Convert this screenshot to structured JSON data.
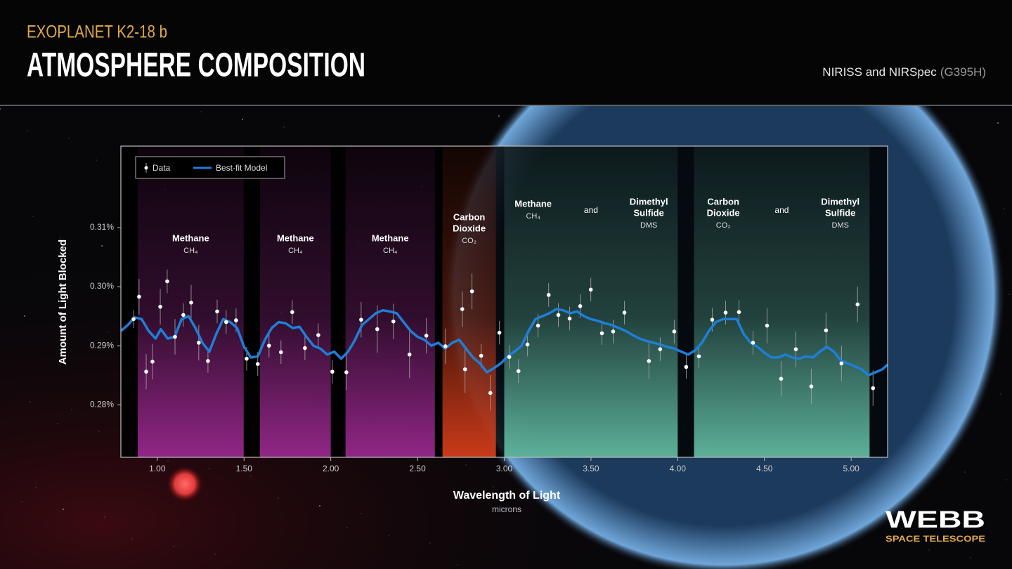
{
  "header": {
    "kicker": "EXOPLANET K2-18 b",
    "title": "ATMOSPHERE COMPOSITION",
    "instrument": "NIRISS and NIRSpec",
    "mode": "(G395H)"
  },
  "chart_data": {
    "type": "scatter-model",
    "xlabel": "Wavelength of Light",
    "xunit": "microns",
    "ylabel": "Amount of Light Blocked",
    "xlim": [
      0.79,
      5.21
    ],
    "ylim": [
      0.2711,
      0.3238
    ],
    "xticks": [
      {
        "value": 1,
        "label": "1.00"
      },
      {
        "value": 1.5,
        "label": "1.50"
      },
      {
        "value": 2,
        "label": "2.00"
      },
      {
        "value": 2.5,
        "label": "2.50"
      },
      {
        "value": 3,
        "label": "3.00"
      },
      {
        "value": 3.5,
        "label": "3.50"
      },
      {
        "value": 4,
        "label": "4.00"
      },
      {
        "value": 4.5,
        "label": "4.50"
      },
      {
        "value": 5,
        "label": "5.00"
      }
    ],
    "yticks": [
      {
        "value": 0.28,
        "label": "0.28%"
      },
      {
        "value": 0.29,
        "label": "0.29%"
      },
      {
        "value": 0.3,
        "label": "0.30%"
      },
      {
        "value": 0.31,
        "label": "0.31%"
      }
    ],
    "regions": [
      {
        "xlim": [
          0.887,
          1.498
        ],
        "color": "#a02a94",
        "groups": [
          {
            "lines": [
              "Methane"
            ],
            "formula": "CH₄"
          }
        ]
      },
      {
        "xlim": [
          1.592,
          2.0
        ],
        "color": "#a02a94",
        "groups": [
          {
            "lines": [
              "Methane"
            ],
            "formula": "CH₄"
          }
        ]
      },
      {
        "xlim": [
          2.085,
          2.6
        ],
        "color": "#a02a94",
        "groups": [
          {
            "lines": [
              "Methane"
            ],
            "formula": "CH₄"
          }
        ]
      },
      {
        "xlim": [
          2.644,
          2.952
        ],
        "color": "#e0401c",
        "groups": [
          {
            "lines": [
              "Carbon",
              "Dioxide"
            ],
            "formula": "CO₂"
          }
        ]
      },
      {
        "xlim": [
          3.0,
          4.0
        ],
        "color": "#66c2a8",
        "groups": [
          {
            "lines": [
              "Methane"
            ],
            "formula": "CH₄"
          },
          {
            "lines": [
              "and"
            ]
          },
          {
            "lines": [
              "Dimethyl",
              "Sulfide"
            ],
            "formula": "DMS"
          }
        ]
      },
      {
        "xlim": [
          4.094,
          5.106
        ],
        "color": "#66c2a8",
        "groups": [
          {
            "lines": [
              "Carbon",
              "Dioxide"
            ],
            "formula": "CO₂"
          },
          {
            "lines": [
              "and"
            ]
          },
          {
            "lines": [
              "Dimethyl",
              "Sulfide"
            ],
            "formula": "DMS"
          }
        ]
      }
    ],
    "series": [
      {
        "name": "Data",
        "color": "#ffffff",
        "x": [
          0.863,
          0.895,
          0.936,
          0.972,
          1.017,
          1.057,
          1.102,
          1.15,
          1.195,
          1.239,
          1.292,
          1.345,
          1.397,
          1.454,
          1.515,
          1.579,
          1.644,
          1.713,
          1.778,
          1.851,
          1.928,
          2.009,
          2.09,
          2.175,
          2.268,
          2.361,
          2.454,
          2.551,
          2.661,
          2.758,
          2.774,
          2.814,
          2.867,
          2.92,
          2.972,
          3.029,
          3.082,
          3.134,
          3.195,
          3.256,
          3.312,
          3.377,
          3.438,
          3.499,
          3.563,
          3.628,
          3.693,
          3.834,
          3.899,
          3.98,
          4.049,
          4.122,
          4.199,
          4.276,
          4.353,
          4.434,
          4.515,
          4.596,
          4.681,
          4.77,
          4.855,
          4.944,
          5.037,
          5.126
        ],
        "values": [
          0.2945,
          0.2983,
          0.2856,
          0.2873,
          0.2966,
          0.3009,
          0.2915,
          0.2952,
          0.2973,
          0.2905,
          0.2874,
          0.2958,
          0.294,
          0.2943,
          0.2878,
          0.2869,
          0.29,
          0.2889,
          0.2957,
          0.2896,
          0.2918,
          0.2856,
          0.2855,
          0.2944,
          0.2928,
          0.2941,
          0.2885,
          0.2917,
          0.2899,
          0.2962,
          0.286,
          0.2992,
          0.2883,
          0.282,
          0.2922,
          0.2881,
          0.2857,
          0.2902,
          0.2934,
          0.2986,
          0.2952,
          0.2946,
          0.2967,
          0.2995,
          0.2921,
          0.2924,
          0.2956,
          0.2874,
          0.2894,
          0.2924,
          0.2864,
          0.2882,
          0.2944,
          0.2956,
          0.2957,
          0.2905,
          0.2934,
          0.2844,
          0.2894,
          0.2831,
          0.2926,
          0.287,
          0.297,
          0.2828
        ],
        "errors": [
          0.0015,
          0.003,
          0.003,
          0.003,
          0.003,
          0.002,
          0.003,
          0.002,
          0.003,
          0.003,
          0.002,
          0.002,
          0.002,
          0.002,
          0.002,
          0.002,
          0.002,
          0.002,
          0.002,
          0.002,
          0.002,
          0.002,
          0.003,
          0.003,
          0.004,
          0.003,
          0.004,
          0.003,
          0.003,
          0.003,
          0.004,
          0.003,
          0.002,
          0.003,
          0.002,
          0.002,
          0.002,
          0.002,
          0.002,
          0.002,
          0.002,
          0.002,
          0.002,
          0.002,
          0.002,
          0.002,
          0.002,
          0.003,
          0.002,
          0.002,
          0.002,
          0.002,
          0.002,
          0.002,
          0.002,
          0.002,
          0.003,
          0.003,
          0.003,
          0.003,
          0.003,
          0.003,
          0.003,
          0.003
        ]
      },
      {
        "name": "Best-fit Model",
        "color": "#1e7fd8",
        "x": [
          0.79,
          0.83,
          0.87,
          0.91,
          0.95,
          0.99,
          1.02,
          1.06,
          1.1,
          1.14,
          1.18,
          1.22,
          1.26,
          1.3,
          1.34,
          1.38,
          1.42,
          1.46,
          1.5,
          1.54,
          1.58,
          1.62,
          1.66,
          1.7,
          1.74,
          1.78,
          1.82,
          1.86,
          1.9,
          1.94,
          1.98,
          2.02,
          2.06,
          2.1,
          2.14,
          2.18,
          2.22,
          2.26,
          2.3,
          2.34,
          2.38,
          2.42,
          2.46,
          2.5,
          2.54,
          2.58,
          2.62,
          2.66,
          2.7,
          2.74,
          2.78,
          2.82,
          2.86,
          2.9,
          2.94,
          2.98,
          3.02,
          3.06,
          3.1,
          3.14,
          3.18,
          3.22,
          3.26,
          3.3,
          3.34,
          3.38,
          3.42,
          3.46,
          3.5,
          3.54,
          3.58,
          3.62,
          3.66,
          3.7,
          3.74,
          3.78,
          3.82,
          3.86,
          3.9,
          3.94,
          3.98,
          4.02,
          4.06,
          4.1,
          4.14,
          4.18,
          4.22,
          4.26,
          4.3,
          4.34,
          4.38,
          4.42,
          4.46,
          4.5,
          4.54,
          4.58,
          4.62,
          4.66,
          4.7,
          4.74,
          4.78,
          4.82,
          4.86,
          4.9,
          4.94,
          4.98,
          5.02,
          5.06,
          5.1,
          5.14,
          5.18,
          5.21
        ],
        "values": [
          0.2925,
          0.2935,
          0.2948,
          0.2945,
          0.2925,
          0.2912,
          0.2928,
          0.2912,
          0.2915,
          0.2945,
          0.295,
          0.293,
          0.2905,
          0.289,
          0.292,
          0.2945,
          0.294,
          0.293,
          0.2898,
          0.288,
          0.2882,
          0.291,
          0.293,
          0.294,
          0.2938,
          0.293,
          0.2932,
          0.2915,
          0.29,
          0.2895,
          0.2885,
          0.289,
          0.2878,
          0.289,
          0.291,
          0.2935,
          0.2945,
          0.2955,
          0.296,
          0.2958,
          0.2955,
          0.294,
          0.2925,
          0.2915,
          0.291,
          0.29,
          0.2905,
          0.2895,
          0.2905,
          0.291,
          0.2895,
          0.288,
          0.287,
          0.2855,
          0.2862,
          0.287,
          0.2882,
          0.289,
          0.29,
          0.2925,
          0.2945,
          0.295,
          0.2955,
          0.2962,
          0.296,
          0.2955,
          0.2958,
          0.295,
          0.2945,
          0.2942,
          0.2938,
          0.2935,
          0.293,
          0.2925,
          0.2918,
          0.2912,
          0.2908,
          0.2905,
          0.2902,
          0.2898,
          0.2895,
          0.289,
          0.2885,
          0.2892,
          0.2905,
          0.2925,
          0.294,
          0.2945,
          0.2945,
          0.2945,
          0.292,
          0.2905,
          0.2898,
          0.2888,
          0.288,
          0.288,
          0.2885,
          0.288,
          0.2878,
          0.2882,
          0.288,
          0.289,
          0.2898,
          0.289,
          0.2875,
          0.287,
          0.2865,
          0.286,
          0.285,
          0.2855,
          0.286,
          0.2868
        ]
      }
    ]
  },
  "footer": {
    "brand": "WEBB",
    "subbrand": "SPACE TELESCOPE"
  }
}
